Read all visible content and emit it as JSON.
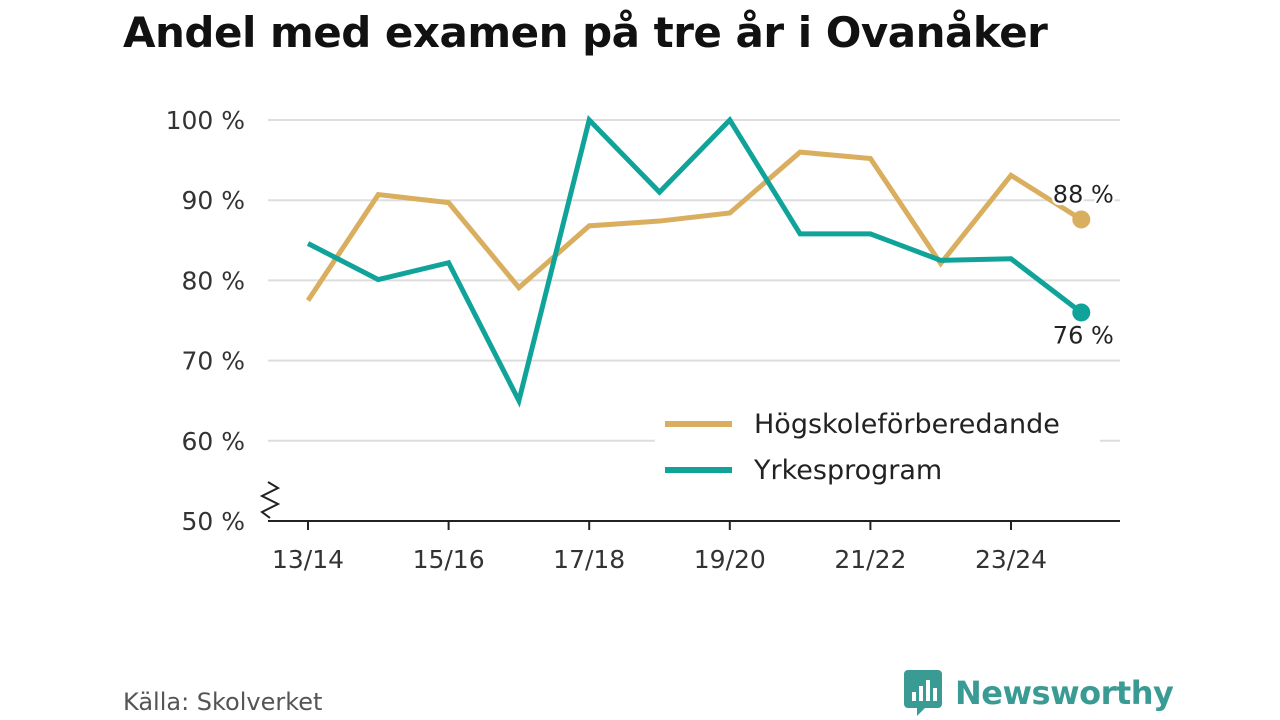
{
  "chart_data": {
    "type": "line",
    "title": "Andel med examen på tre år i Ovanåker",
    "xlabel": "",
    "ylabel": "",
    "categories": [
      "13/14",
      "14/15",
      "15/16",
      "16/17",
      "17/18",
      "18/19",
      "19/20",
      "20/21",
      "21/22",
      "22/23",
      "23/24",
      "24/25"
    ],
    "x_tick_labels": [
      "13/14",
      "15/16",
      "17/18",
      "19/20",
      "21/22",
      "23/24"
    ],
    "y_ticks": [
      50,
      60,
      70,
      80,
      90,
      100
    ],
    "y_tick_labels": [
      "50 %",
      "60 %",
      "70 %",
      "80 %",
      "90 %",
      "100 %"
    ],
    "ylim": [
      50,
      100
    ],
    "axis_break": true,
    "grid": true,
    "legend_position": "bottom-right",
    "series": [
      {
        "name": "Högskoleförberedande",
        "color": "#d9ae5f",
        "values": [
          77.5,
          90.7,
          89.7,
          79.1,
          86.8,
          87.4,
          88.4,
          96.0,
          95.2,
          82.1,
          93.1,
          87.6
        ],
        "end_label": "88 %",
        "end_label_position": "above"
      },
      {
        "name": "Yrkesprogram",
        "color": "#10a399",
        "values": [
          84.6,
          80.1,
          82.2,
          65.0,
          100.0,
          91.0,
          100.0,
          85.8,
          85.8,
          82.5,
          82.7,
          76.0
        ],
        "end_label": "76 %",
        "end_label_position": "below"
      }
    ]
  },
  "footer": {
    "source": "Källa: Skolverket",
    "brand": "Newsworthy",
    "brand_color": "#3a9b94"
  }
}
